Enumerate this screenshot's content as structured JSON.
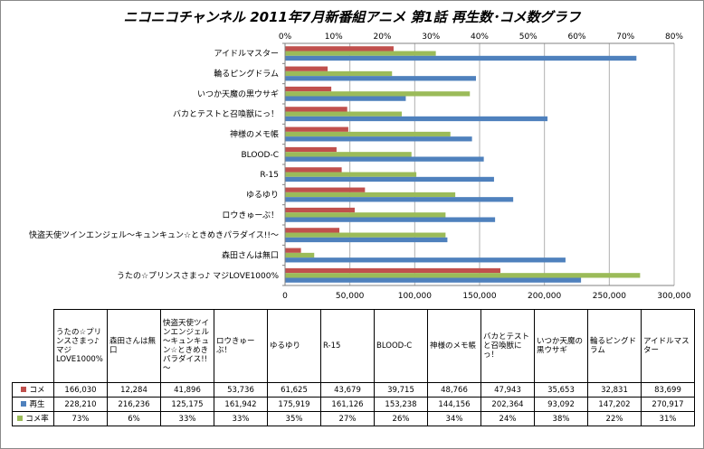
{
  "chart_data": {
    "type": "bar",
    "orientation": "horizontal",
    "title": "ニコニコチャンネル 2011年7月新番組アニメ 第1話 再生数･コメ数グラフ",
    "categories": [
      "うたの☆プリンスさまっ♪ マジLOVE1000%",
      "森田さんは無口",
      "快盗天使ツインエンジェル～キュンキュン☆ときめきパラダイス!!～",
      "ロウきゅーぶ！",
      "ゆるゆり",
      "R-15",
      "BLOOD-C",
      "神様のメモ帳",
      "バカとテストと召喚獣にっ！",
      "いつか天魔の黒ウサギ",
      "輪るピングドラム",
      "アイドルマスター"
    ],
    "table_headers": [
      "うたの☆プリンスさまっ♪マジLOVE1000%",
      "森田さんは無口",
      "快盗天使ツインエンジェル～キュンキュン☆ときめきパラダイス!!～",
      "ロウきゅーぶ！",
      "ゆるゆり",
      "R-15",
      "BLOOD-C",
      "神様のメモ帳",
      "バカとテストと召喚獣にっ！",
      "いつか天魔の黒ウサギ",
      "輪るピングドラム",
      "アイドルマスター"
    ],
    "series": [
      {
        "name": "コメ",
        "color": "#c0504d",
        "axis": "bottom",
        "values": [
          166030,
          12284,
          41896,
          53736,
          61625,
          43679,
          39715,
          48766,
          47943,
          35653,
          32831,
          83699
        ],
        "labels": [
          "166,030",
          "12,284",
          "41,896",
          "53,736",
          "61,625",
          "43,679",
          "39,715",
          "48,766",
          "47,943",
          "35,653",
          "32,831",
          "83,699"
        ]
      },
      {
        "name": "再生",
        "color": "#4f81bd",
        "axis": "bottom",
        "values": [
          228210,
          216236,
          125175,
          161942,
          175919,
          161126,
          153238,
          144156,
          202364,
          93092,
          147202,
          270917
        ],
        "labels": [
          "228,210",
          "216,236",
          "125,175",
          "161,942",
          "175,919",
          "161,126",
          "153,238",
          "144,156",
          "202,364",
          "93,092",
          "147,202",
          "270,917"
        ]
      },
      {
        "name": "コメ率",
        "color": "#9bbb59",
        "axis": "top",
        "values": [
          73,
          6,
          33,
          33,
          35,
          27,
          26,
          34,
          24,
          38,
          22,
          31
        ],
        "labels": [
          "73%",
          "6%",
          "33%",
          "33%",
          "35%",
          "27%",
          "26%",
          "34%",
          "24%",
          "38%",
          "22%",
          "31%"
        ]
      }
    ],
    "x_bottom": {
      "min": 0,
      "max": 300000,
      "ticks": [
        "0",
        "50,000",
        "100,000",
        "150,000",
        "200,000",
        "250,000",
        "300,000"
      ]
    },
    "x_top": {
      "min": 0,
      "max": 80,
      "ticks": [
        "0%",
        "10%",
        "20%",
        "30%",
        "40%",
        "50%",
        "60%",
        "70%",
        "80%"
      ]
    },
    "grid": true
  }
}
